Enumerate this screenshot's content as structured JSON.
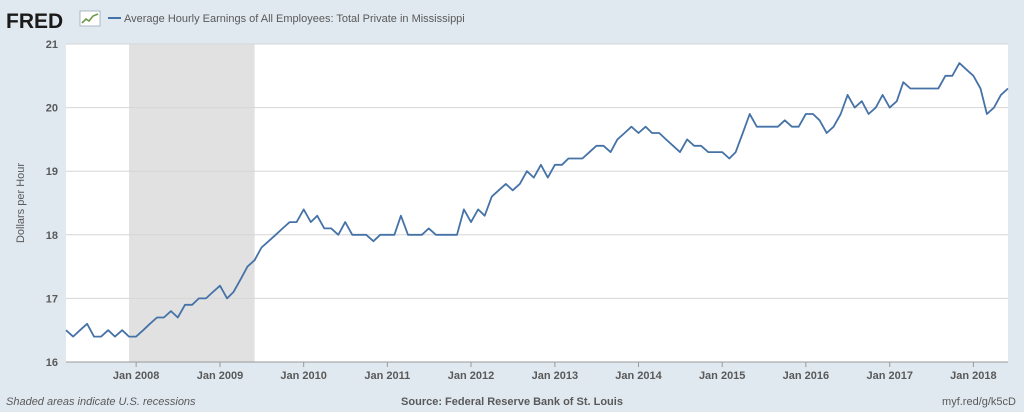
{
  "header": {
    "logo_text": "FRED",
    "logo_icon": "fred-graph-icon",
    "legend_label": "Average Hourly Earnings of All Employees: Total Private in Mississippi"
  },
  "footer": {
    "recessions_note": "Shaded areas indicate U.S. recessions",
    "source": "Source: Federal Reserve Bank of St. Louis",
    "short_url": "myf.red/g/k5cD"
  },
  "colors": {
    "series": "#4572a7",
    "recession": "#e1e1e1",
    "plot_bg": "#ffffff",
    "frame_bg": "#e1e9f0",
    "grid": "#d6d6d6"
  },
  "chart_data": {
    "type": "line",
    "title": "",
    "xlabel": "",
    "ylabel": "Dollars per Hour",
    "ylim": [
      16,
      21
    ],
    "yticks": [
      16,
      17,
      18,
      19,
      20,
      21
    ],
    "xlim": [
      "2007-03-01",
      "2018-06-01"
    ],
    "xticks": [
      {
        "date": "2008-01-01",
        "label": "Jan 2008"
      },
      {
        "date": "2009-01-01",
        "label": "Jan 2009"
      },
      {
        "date": "2010-01-01",
        "label": "Jan 2010"
      },
      {
        "date": "2011-01-01",
        "label": "Jan 2011"
      },
      {
        "date": "2012-01-01",
        "label": "Jan 2012"
      },
      {
        "date": "2013-01-01",
        "label": "Jan 2013"
      },
      {
        "date": "2014-01-01",
        "label": "Jan 2014"
      },
      {
        "date": "2015-01-01",
        "label": "Jan 2015"
      },
      {
        "date": "2016-01-01",
        "label": "Jan 2016"
      },
      {
        "date": "2017-01-01",
        "label": "Jan 2017"
      },
      {
        "date": "2018-01-01",
        "label": "Jan 2018"
      }
    ],
    "grid": true,
    "recessions": [
      {
        "start": "2007-12-01",
        "end": "2009-06-01"
      }
    ],
    "series": [
      {
        "name": "Average Hourly Earnings of All Employees: Total Private in Mississippi",
        "start": "2007-03-01",
        "frequency": "monthly",
        "values": [
          16.5,
          16.4,
          16.5,
          16.6,
          16.4,
          16.4,
          16.5,
          16.4,
          16.5,
          16.4,
          16.4,
          16.5,
          16.6,
          16.7,
          16.7,
          16.8,
          16.7,
          16.9,
          16.9,
          17.0,
          17.0,
          17.1,
          17.2,
          17.0,
          17.1,
          17.3,
          17.5,
          17.6,
          17.8,
          17.9,
          18.0,
          18.1,
          18.2,
          18.2,
          18.4,
          18.2,
          18.3,
          18.1,
          18.1,
          18.0,
          18.2,
          18.0,
          18.0,
          18.0,
          17.9,
          18.0,
          18.0,
          18.0,
          18.3,
          18.0,
          18.0,
          18.0,
          18.1,
          18.0,
          18.0,
          18.0,
          18.0,
          18.4,
          18.2,
          18.4,
          18.3,
          18.6,
          18.7,
          18.8,
          18.7,
          18.8,
          19.0,
          18.9,
          19.1,
          18.9,
          19.1,
          19.1,
          19.2,
          19.2,
          19.2,
          19.3,
          19.4,
          19.4,
          19.3,
          19.5,
          19.6,
          19.7,
          19.6,
          19.7,
          19.6,
          19.6,
          19.5,
          19.4,
          19.3,
          19.5,
          19.4,
          19.4,
          19.3,
          19.3,
          19.3,
          19.2,
          19.3,
          19.6,
          19.9,
          19.7,
          19.7,
          19.7,
          19.7,
          19.8,
          19.7,
          19.7,
          19.9,
          19.9,
          19.8,
          19.6,
          19.7,
          19.9,
          20.2,
          20.0,
          20.1,
          19.9,
          20.0,
          20.2,
          20.0,
          20.1,
          20.4,
          20.3,
          20.3,
          20.3,
          20.3,
          20.3,
          20.5,
          20.5,
          20.7,
          20.6,
          20.5,
          20.3,
          19.9,
          20.0,
          20.2,
          20.3
        ]
      }
    ]
  }
}
